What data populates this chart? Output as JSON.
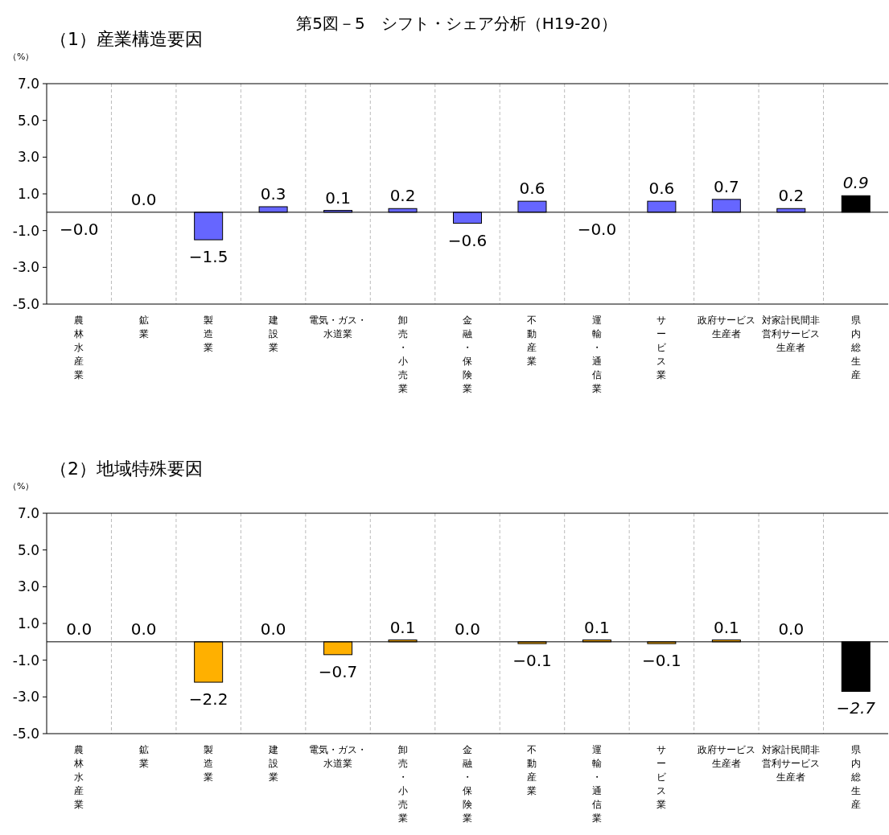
{
  "chart_data": [
    {
      "type": "bar",
      "title": "第5図－5　シフト・シェア分析（H19-20）",
      "subtitle": "（1）産業構造要因",
      "ylabel": "（%）",
      "categories": [
        "農林水産業",
        "鉱業",
        "製造業",
        "建設業",
        "電気・ガス・水道業",
        "卸売・小売業",
        "金融・保険業",
        "不動産業",
        "運輸・通信業",
        "サービス業",
        "政府サービス生産者",
        "対家計民間非営利サービス生産者",
        "県内総生産"
      ],
      "values": [
        -0.0,
        0.0,
        -1.5,
        0.3,
        0.1,
        0.2,
        -0.6,
        0.6,
        -0.0,
        0.6,
        0.7,
        0.2,
        0.9
      ],
      "value_labels": [
        "−0.0",
        "0.0",
        "−1.5",
        "0.3",
        "0.1",
        "0.2",
        "−0.6",
        "0.6",
        "−0.0",
        "0.6",
        "0.7",
        "0.2",
        "0.9"
      ],
      "colors": [
        "#6666ff",
        "#6666ff",
        "#6666ff",
        "#6666ff",
        "#6666ff",
        "#6666ff",
        "#6666ff",
        "#6666ff",
        "#6666ff",
        "#6666ff",
        "#6666ff",
        "#6666ff",
        "#000000"
      ],
      "ylim": [
        -5,
        7
      ],
      "yticks": [
        {
          "value": -5,
          "label": "-5.0"
        },
        {
          "value": -3,
          "label": "-3.0"
        },
        {
          "value": -1,
          "label": "-1.0"
        },
        {
          "value": 1,
          "label": "1.0"
        },
        {
          "value": 3,
          "label": "3.0"
        },
        {
          "value": 5,
          "label": "5.0"
        },
        {
          "value": 7,
          "label": "7.0"
        }
      ],
      "grid": "x"
    },
    {
      "type": "bar",
      "subtitle": "（2）地域特殊要因",
      "ylabel": "（%）",
      "categories": [
        "農林水産業",
        "鉱業",
        "製造業",
        "建設業",
        "電気・ガス・水道業",
        "卸売・小売業",
        "金融・保険業",
        "不動産業",
        "運輸・通信業",
        "サービス業",
        "政府サービス生産者",
        "対家計民間非営利サービス生産者",
        "県内総生産"
      ],
      "values": [
        0.0,
        0.0,
        -2.2,
        0.0,
        -0.7,
        0.1,
        0.0,
        -0.1,
        0.1,
        -0.1,
        0.1,
        0.0,
        -2.7
      ],
      "value_labels": [
        "0.0",
        "0.0",
        "−2.2",
        "0.0",
        "−0.7",
        "0.1",
        "0.0",
        "−0.1",
        "0.1",
        "−0.1",
        "0.1",
        "0.0",
        "−2.7"
      ],
      "colors": [
        "#ffb000",
        "#ffb000",
        "#ffb000",
        "#ffb000",
        "#ffb000",
        "#ffb000",
        "#ffb000",
        "#ffb000",
        "#ffb000",
        "#ffb000",
        "#ffb000",
        "#ffb000",
        "#000000"
      ],
      "ylim": [
        -5,
        7
      ],
      "yticks": [
        {
          "value": -5,
          "label": "-5.0"
        },
        {
          "value": -3,
          "label": "-3.0"
        },
        {
          "value": -1,
          "label": "-1.0"
        },
        {
          "value": 1,
          "label": "1.0"
        },
        {
          "value": 3,
          "label": "3.0"
        },
        {
          "value": 5,
          "label": "5.0"
        },
        {
          "value": 7,
          "label": "7.0"
        }
      ],
      "grid": "x"
    }
  ]
}
